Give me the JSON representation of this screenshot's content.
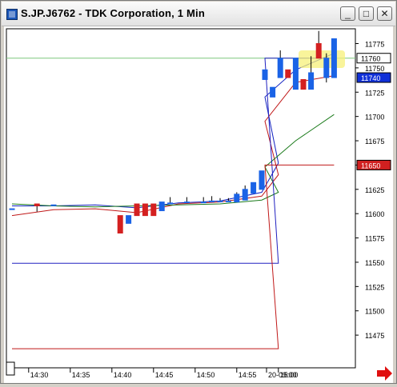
{
  "window": {
    "title": "S.JP.J6762 - TDK Corporation, 1 Min"
  },
  "title_buttons": {
    "minimize": "_",
    "maximize": "□",
    "close": "✕"
  },
  "chart_data": {
    "type": "candlestick",
    "title": "S.JP.J6762 - TDK Corporation, 1 Min",
    "ylim": [
      11450,
      11785
    ],
    "y_ticks": [
      11475,
      11500,
      11525,
      11550,
      11575,
      11600,
      11625,
      11650,
      11675,
      11700,
      11725,
      11750,
      11775
    ],
    "x_tick_labels": [
      "14:30",
      "14:35",
      "14:40",
      "14:45",
      "14:50",
      "14:55",
      "15:00",
      "20-09:00"
    ],
    "up_color": "#1a63e6",
    "down_color": "#d42020",
    "candles": [
      {
        "t": "14:28",
        "o": 11605,
        "h": 11605,
        "l": 11605,
        "c": 11605
      },
      {
        "t": "14:31",
        "o": 11610,
        "h": 11610,
        "l": 11602,
        "c": 11608
      },
      {
        "t": "14:33",
        "o": 11609,
        "h": 11609,
        "l": 11609,
        "c": 11609
      },
      {
        "t": "14:41",
        "o": 11598,
        "h": 11598,
        "l": 11580,
        "c": 11580
      },
      {
        "t": "14:42",
        "o": 11590,
        "h": 11598,
        "l": 11590,
        "c": 11598
      },
      {
        "t": "14:43",
        "o": 11610,
        "h": 11610,
        "l": 11598,
        "c": 11598
      },
      {
        "t": "14:44",
        "o": 11610,
        "h": 11610,
        "l": 11598,
        "c": 11598
      },
      {
        "t": "14:45",
        "o": 11610,
        "h": 11610,
        "l": 11598,
        "c": 11598
      },
      {
        "t": "14:46",
        "o": 11603,
        "h": 11612,
        "l": 11603,
        "c": 11612
      },
      {
        "t": "14:47",
        "o": 11611,
        "h": 11617,
        "l": 11610,
        "c": 11611
      },
      {
        "t": "14:49",
        "o": 11612,
        "h": 11617,
        "l": 11612,
        "c": 11612
      },
      {
        "t": "14:51",
        "o": 11612,
        "h": 11617,
        "l": 11612,
        "c": 11612
      },
      {
        "t": "14:52",
        "o": 11613,
        "h": 11618,
        "l": 11613,
        "c": 11613
      },
      {
        "t": "14:53",
        "o": 11613,
        "h": 11616,
        "l": 11613,
        "c": 11613
      },
      {
        "t": "14:54",
        "o": 11613,
        "h": 11616,
        "l": 11613,
        "c": 11613
      },
      {
        "t": "14:55",
        "o": 11612,
        "h": 11622,
        "l": 11612,
        "c": 11620
      },
      {
        "t": "14:56",
        "o": 11614,
        "h": 11629,
        "l": 11614,
        "c": 11625
      },
      {
        "t": "14:57",
        "o": 11621,
        "h": 11632,
        "l": 11621,
        "c": 11632
      },
      {
        "t": "14:58",
        "o": 11625,
        "h": 11644,
        "l": 11625,
        "c": 11644
      },
      {
        "t": "09:00",
        "o": 11738,
        "h": 11748,
        "l": 11738,
        "c": 11748
      },
      {
        "t": "09:01",
        "o": 11720,
        "h": 11730,
        "l": 11720,
        "c": 11730
      },
      {
        "t": "09:02",
        "o": 11740,
        "h": 11768,
        "l": 11740,
        "c": 11760
      },
      {
        "t": "09:03",
        "o": 11748,
        "h": 11748,
        "l": 11740,
        "c": 11740
      },
      {
        "t": "09:04",
        "o": 11728,
        "h": 11760,
        "l": 11728,
        "c": 11760
      },
      {
        "t": "09:05",
        "o": 11738,
        "h": 11738,
        "l": 11728,
        "c": 11728
      },
      {
        "t": "09:06",
        "o": 11728,
        "h": 11762,
        "l": 11728,
        "c": 11745
      },
      {
        "t": "09:07",
        "o": 11775,
        "h": 11788,
        "l": 11760,
        "c": 11760
      },
      {
        "t": "09:08",
        "o": 11740,
        "h": 11765,
        "l": 11735,
        "c": 11760
      },
      {
        "t": "09:09",
        "o": 11740,
        "h": 11780,
        "l": 11740,
        "c": 11780
      }
    ],
    "series": [
      {
        "color": "#1020c0",
        "x": [
          "14:28",
          "14:33",
          "14:38",
          "14:43",
          "14:48",
          "14:53",
          "14:58",
          "15:00",
          "09:00",
          "09:04",
          "09:09"
        ],
        "values": [
          11608,
          11608,
          11609,
          11606,
          11611,
          11613,
          11622,
          11652,
          11720,
          11748,
          11765
        ]
      },
      {
        "color": "#c01818",
        "x": [
          "14:28",
          "14:33",
          "14:38",
          "14:43",
          "14:48",
          "14:53",
          "14:58",
          "15:00",
          "09:00",
          "09:04",
          "09:09"
        ],
        "values": [
          11598,
          11604,
          11605,
          11601,
          11610,
          11612,
          11618,
          11640,
          11695,
          11735,
          11742
        ]
      },
      {
        "color": "#1a7a1a",
        "x": [
          "14:28",
          "14:33",
          "14:38",
          "14:43",
          "14:48",
          "14:53",
          "14:58",
          "15:00",
          "09:00",
          "09:04",
          "09:09"
        ],
        "values": [
          11610,
          11608,
          11607,
          11608,
          11609,
          11610,
          11614,
          11622,
          11648,
          11675,
          11702
        ]
      },
      {
        "color": "#2020c0",
        "x": [
          "14:28",
          "15:00",
          "09:00",
          "09:09"
        ],
        "values": [
          11549,
          11549,
          11760,
          11760
        ]
      },
      {
        "color": "#c01818",
        "x": [
          "14:28",
          "15:00",
          "09:00",
          "09:09"
        ],
        "values": [
          11461,
          11461,
          11650,
          11650
        ]
      }
    ],
    "price_labels": [
      {
        "text": "11760",
        "value": 11760,
        "bg": "#ffffff",
        "fg": "#000000"
      },
      {
        "text": "11740",
        "value": 11740,
        "bg": "#1030d8",
        "fg": "#ffffff"
      },
      {
        "text": "11650",
        "value": 11650,
        "bg": "#d02020",
        "fg": "#ffffff"
      }
    ],
    "reference_line": {
      "value": 11760,
      "color": "#7bc77b"
    }
  }
}
